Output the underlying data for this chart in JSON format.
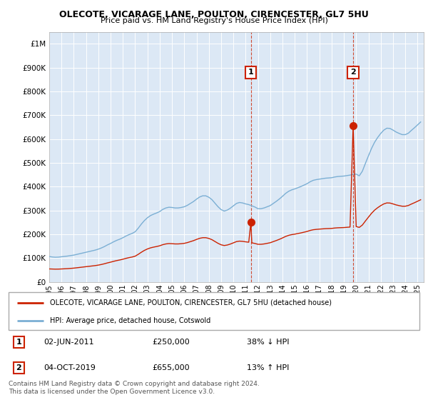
{
  "title_line1": "OLECOTE, VICARAGE LANE, POULTON, CIRENCESTER, GL7 5HU",
  "title_line2": "Price paid vs. HM Land Registry's House Price Index (HPI)",
  "plot_bg_color": "#dce8f5",
  "ylim": [
    0,
    1050000
  ],
  "yticks": [
    0,
    100000,
    200000,
    300000,
    400000,
    500000,
    600000,
    700000,
    800000,
    900000,
    1000000
  ],
  "ytick_labels": [
    "£0",
    "£100K",
    "£200K",
    "£300K",
    "£400K",
    "£500K",
    "£600K",
    "£700K",
    "£800K",
    "£900K",
    "£1M"
  ],
  "xlim_start": 1995.0,
  "xlim_end": 2025.5,
  "hpi_color": "#7bafd4",
  "sale_color": "#cc2200",
  "vline_color": "#cc2200",
  "sale1_x": 2011.42,
  "sale1_y": 250000,
  "sale2_x": 2019.75,
  "sale2_y": 655000,
  "annotation1_text": "02-JUN-2011",
  "annotation1_price": "£250,000",
  "annotation1_hpi": "38% ↓ HPI",
  "annotation2_text": "04-OCT-2019",
  "annotation2_price": "£655,000",
  "annotation2_hpi": "13% ↑ HPI",
  "legend_label1": "OLECOTE, VICARAGE LANE, POULTON, CIRENCESTER, GL7 5HU (detached house)",
  "legend_label2": "HPI: Average price, detached house, Cotswold",
  "footer_text": "Contains HM Land Registry data © Crown copyright and database right 2024.\nThis data is licensed under the Open Government Licence v3.0.",
  "hpi_data": [
    [
      1995.0,
      107000
    ],
    [
      1995.25,
      105000
    ],
    [
      1995.5,
      104000
    ],
    [
      1995.75,
      104500
    ],
    [
      1996.0,
      106000
    ],
    [
      1996.25,
      107500
    ],
    [
      1996.5,
      109000
    ],
    [
      1996.75,
      111000
    ],
    [
      1997.0,
      113000
    ],
    [
      1997.25,
      116000
    ],
    [
      1997.5,
      119000
    ],
    [
      1997.75,
      122000
    ],
    [
      1998.0,
      125000
    ],
    [
      1998.25,
      128000
    ],
    [
      1998.5,
      131000
    ],
    [
      1998.75,
      134000
    ],
    [
      1999.0,
      138000
    ],
    [
      1999.25,
      143000
    ],
    [
      1999.5,
      149000
    ],
    [
      1999.75,
      156000
    ],
    [
      2000.0,
      162000
    ],
    [
      2000.25,
      169000
    ],
    [
      2000.5,
      175000
    ],
    [
      2000.75,
      180000
    ],
    [
      2001.0,
      186000
    ],
    [
      2001.25,
      193000
    ],
    [
      2001.5,
      199000
    ],
    [
      2001.75,
      204000
    ],
    [
      2002.0,
      211000
    ],
    [
      2002.25,
      226000
    ],
    [
      2002.5,
      243000
    ],
    [
      2002.75,
      258000
    ],
    [
      2003.0,
      270000
    ],
    [
      2003.25,
      279000
    ],
    [
      2003.5,
      285000
    ],
    [
      2003.75,
      290000
    ],
    [
      2004.0,
      296000
    ],
    [
      2004.25,
      305000
    ],
    [
      2004.5,
      311000
    ],
    [
      2004.75,
      314000
    ],
    [
      2005.0,
      313000
    ],
    [
      2005.25,
      311000
    ],
    [
      2005.5,
      311000
    ],
    [
      2005.75,
      313000
    ],
    [
      2006.0,
      316000
    ],
    [
      2006.25,
      322000
    ],
    [
      2006.5,
      330000
    ],
    [
      2006.75,
      338000
    ],
    [
      2007.0,
      348000
    ],
    [
      2007.25,
      357000
    ],
    [
      2007.5,
      362000
    ],
    [
      2007.75,
      362000
    ],
    [
      2008.0,
      356000
    ],
    [
      2008.25,
      346000
    ],
    [
      2008.5,
      331000
    ],
    [
      2008.75,
      316000
    ],
    [
      2009.0,
      304000
    ],
    [
      2009.25,
      298000
    ],
    [
      2009.5,
      302000
    ],
    [
      2009.75,
      310000
    ],
    [
      2010.0,
      320000
    ],
    [
      2010.25,
      330000
    ],
    [
      2010.5,
      334000
    ],
    [
      2010.75,
      332000
    ],
    [
      2011.0,
      328000
    ],
    [
      2011.25,
      325000
    ],
    [
      2011.5,
      320000
    ],
    [
      2011.75,
      315000
    ],
    [
      2012.0,
      308000
    ],
    [
      2012.25,
      308000
    ],
    [
      2012.5,
      311000
    ],
    [
      2012.75,
      316000
    ],
    [
      2013.0,
      321000
    ],
    [
      2013.25,
      330000
    ],
    [
      2013.5,
      339000
    ],
    [
      2013.75,
      349000
    ],
    [
      2014.0,
      360000
    ],
    [
      2014.25,
      372000
    ],
    [
      2014.5,
      381000
    ],
    [
      2014.75,
      387000
    ],
    [
      2015.0,
      391000
    ],
    [
      2015.25,
      396000
    ],
    [
      2015.5,
      401000
    ],
    [
      2015.75,
      407000
    ],
    [
      2016.0,
      413000
    ],
    [
      2016.25,
      421000
    ],
    [
      2016.5,
      427000
    ],
    [
      2016.75,
      430000
    ],
    [
      2017.0,
      432000
    ],
    [
      2017.25,
      434000
    ],
    [
      2017.5,
      436000
    ],
    [
      2017.75,
      437000
    ],
    [
      2018.0,
      438000
    ],
    [
      2018.25,
      441000
    ],
    [
      2018.5,
      443000
    ],
    [
      2018.75,
      444000
    ],
    [
      2019.0,
      445000
    ],
    [
      2019.25,
      447000
    ],
    [
      2019.5,
      449000
    ],
    [
      2019.75,
      452000
    ],
    [
      2020.0,
      453000
    ],
    [
      2020.25,
      446000
    ],
    [
      2020.5,
      465000
    ],
    [
      2020.75,
      498000
    ],
    [
      2021.0,
      530000
    ],
    [
      2021.25,
      561000
    ],
    [
      2021.5,
      587000
    ],
    [
      2021.75,
      607000
    ],
    [
      2022.0,
      624000
    ],
    [
      2022.25,
      638000
    ],
    [
      2022.5,
      646000
    ],
    [
      2022.75,
      645000
    ],
    [
      2023.0,
      638000
    ],
    [
      2023.25,
      630000
    ],
    [
      2023.5,
      624000
    ],
    [
      2023.75,
      619000
    ],
    [
      2024.0,
      619000
    ],
    [
      2024.25,
      625000
    ],
    [
      2024.5,
      637000
    ],
    [
      2024.75,
      648000
    ],
    [
      2025.0,
      660000
    ],
    [
      2025.25,
      672000
    ]
  ],
  "sale_line_data": [
    [
      1995.0,
      55000
    ],
    [
      1995.25,
      54500
    ],
    [
      1995.5,
      54000
    ],
    [
      1995.75,
      54200
    ],
    [
      1996.0,
      54800
    ],
    [
      1996.25,
      55500
    ],
    [
      1996.5,
      56200
    ],
    [
      1996.75,
      57200
    ],
    [
      1997.0,
      58300
    ],
    [
      1997.25,
      59800
    ],
    [
      1997.5,
      61300
    ],
    [
      1997.75,
      62800
    ],
    [
      1998.0,
      64400
    ],
    [
      1998.25,
      65900
    ],
    [
      1998.5,
      67400
    ],
    [
      1998.75,
      69000
    ],
    [
      1999.0,
      71000
    ],
    [
      1999.25,
      73600
    ],
    [
      1999.5,
      76700
    ],
    [
      1999.75,
      80300
    ],
    [
      2000.0,
      83400
    ],
    [
      2000.25,
      86900
    ],
    [
      2000.5,
      90000
    ],
    [
      2000.75,
      92600
    ],
    [
      2001.0,
      95700
    ],
    [
      2001.25,
      99300
    ],
    [
      2001.5,
      102400
    ],
    [
      2001.75,
      104900
    ],
    [
      2002.0,
      108500
    ],
    [
      2002.25,
      116200
    ],
    [
      2002.5,
      124900
    ],
    [
      2002.75,
      132700
    ],
    [
      2003.0,
      138800
    ],
    [
      2003.25,
      143400
    ],
    [
      2003.5,
      146500
    ],
    [
      2003.75,
      149100
    ],
    [
      2004.0,
      152200
    ],
    [
      2004.25,
      156800
    ],
    [
      2004.5,
      159900
    ],
    [
      2004.75,
      161400
    ],
    [
      2005.0,
      160900
    ],
    [
      2005.25,
      159900
    ],
    [
      2005.5,
      159900
    ],
    [
      2005.75,
      160900
    ],
    [
      2006.0,
      162400
    ],
    [
      2006.25,
      165500
    ],
    [
      2006.5,
      169600
    ],
    [
      2006.75,
      173700
    ],
    [
      2007.0,
      178900
    ],
    [
      2007.25,
      183500
    ],
    [
      2007.5,
      186100
    ],
    [
      2007.75,
      186100
    ],
    [
      2008.0,
      183000
    ],
    [
      2008.25,
      177800
    ],
    [
      2008.5,
      170100
    ],
    [
      2008.75,
      162400
    ],
    [
      2009.0,
      156300
    ],
    [
      2009.25,
      153200
    ],
    [
      2009.5,
      155300
    ],
    [
      2009.75,
      159400
    ],
    [
      2010.0,
      164500
    ],
    [
      2010.25,
      169700
    ],
    [
      2010.5,
      171700
    ],
    [
      2010.75,
      170700
    ],
    [
      2011.0,
      168700
    ],
    [
      2011.25,
      167100
    ],
    [
      2011.42,
      250000
    ],
    [
      2011.5,
      164500
    ],
    [
      2011.75,
      161900
    ],
    [
      2012.0,
      158400
    ],
    [
      2012.25,
      158400
    ],
    [
      2012.5,
      159900
    ],
    [
      2012.75,
      162400
    ],
    [
      2013.0,
      165000
    ],
    [
      2013.25,
      169700
    ],
    [
      2013.5,
      174300
    ],
    [
      2013.75,
      179400
    ],
    [
      2014.0,
      185100
    ],
    [
      2014.25,
      191300
    ],
    [
      2014.5,
      195900
    ],
    [
      2014.75,
      199000
    ],
    [
      2015.0,
      201000
    ],
    [
      2015.25,
      203600
    ],
    [
      2015.5,
      206200
    ],
    [
      2015.75,
      209200
    ],
    [
      2016.0,
      212300
    ],
    [
      2016.25,
      216500
    ],
    [
      2016.5,
      219500
    ],
    [
      2016.75,
      221000
    ],
    [
      2017.0,
      222100
    ],
    [
      2017.25,
      223100
    ],
    [
      2017.5,
      224100
    ],
    [
      2017.75,
      224600
    ],
    [
      2018.0,
      225100
    ],
    [
      2018.25,
      226700
    ],
    [
      2018.5,
      227700
    ],
    [
      2018.75,
      228200
    ],
    [
      2019.0,
      228700
    ],
    [
      2019.25,
      229800
    ],
    [
      2019.5,
      230800
    ],
    [
      2019.75,
      655000
    ],
    [
      2020.0,
      232900
    ],
    [
      2020.25,
      229300
    ],
    [
      2020.5,
      239100
    ],
    [
      2020.75,
      256100
    ],
    [
      2021.0,
      272500
    ],
    [
      2021.25,
      288500
    ],
    [
      2021.5,
      301900
    ],
    [
      2021.75,
      312100
    ],
    [
      2022.0,
      320800
    ],
    [
      2022.25,
      328000
    ],
    [
      2022.5,
      332200
    ],
    [
      2022.75,
      331600
    ],
    [
      2023.0,
      328000
    ],
    [
      2023.25,
      323800
    ],
    [
      2023.5,
      320800
    ],
    [
      2023.75,
      318300
    ],
    [
      2024.0,
      318300
    ],
    [
      2024.25,
      321400
    ],
    [
      2024.5,
      327500
    ],
    [
      2024.75,
      333100
    ],
    [
      2025.0,
      339200
    ],
    [
      2025.25,
      345400
    ]
  ]
}
